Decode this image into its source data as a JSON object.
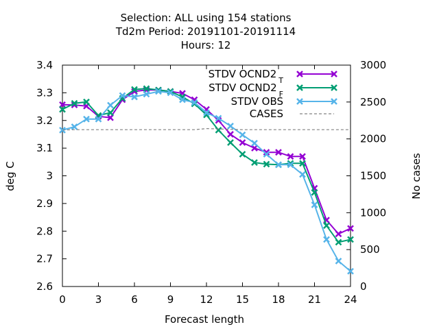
{
  "title_lines": [
    "Selection: ALL using   154 stations",
    "Td2m   Period: 20191101-20191114",
    "Hours:  12"
  ],
  "chart_data": {
    "type": "line",
    "xlabel": "Forecast length",
    "ylabel": "deg C",
    "y2label": "No cases",
    "xlim": [
      0,
      24
    ],
    "ylim": [
      2.6,
      3.4
    ],
    "y2lim": [
      0,
      3000
    ],
    "x_ticks": [
      "0",
      "3",
      "6",
      "9",
      "12",
      "15",
      "18",
      "21",
      "24"
    ],
    "y_ticks": [
      "2.6",
      "2.7",
      "2.8",
      "2.9",
      "3",
      "3.1",
      "3.2",
      "3.3",
      "3.4"
    ],
    "y2_ticks": [
      "0",
      "500",
      "1000",
      "1500",
      "2000",
      "2500",
      "3000"
    ],
    "legend_position": "top-right",
    "x": [
      0,
      1,
      2,
      3,
      4,
      5,
      6,
      7,
      8,
      9,
      10,
      11,
      12,
      13,
      14,
      15,
      16,
      17,
      18,
      19,
      20,
      21,
      22,
      23,
      24
    ],
    "series": [
      {
        "name": "STDV OCND2",
        "subscript": "T",
        "color": "#9400d3",
        "marker": "x",
        "axis": "y",
        "values": [
          3.257,
          3.256,
          3.252,
          3.215,
          3.21,
          3.275,
          3.305,
          3.31,
          3.31,
          3.305,
          3.298,
          3.275,
          3.24,
          3.2,
          3.15,
          3.12,
          3.1,
          3.085,
          3.085,
          3.07,
          3.07,
          2.955,
          2.84,
          2.79,
          2.81
        ]
      },
      {
        "name": "STDV OCND2",
        "subscript": "F",
        "color": "#009e73",
        "marker": "x",
        "axis": "y",
        "values": [
          3.24,
          3.262,
          3.267,
          3.218,
          3.228,
          3.28,
          3.312,
          3.315,
          3.31,
          3.305,
          3.285,
          3.26,
          3.22,
          3.165,
          3.12,
          3.078,
          3.048,
          3.042,
          3.04,
          3.045,
          3.045,
          2.94,
          2.82,
          2.76,
          2.77
        ]
      },
      {
        "name": "STDV OBS",
        "color": "#56b4e9",
        "marker": "x",
        "axis": "y",
        "values": [
          3.165,
          3.177,
          3.205,
          3.205,
          3.255,
          3.29,
          3.285,
          3.295,
          3.305,
          3.3,
          3.275,
          3.265,
          3.228,
          3.208,
          3.18,
          3.148,
          3.118,
          3.078,
          3.04,
          3.04,
          3.005,
          2.895,
          2.77,
          2.692,
          2.655
        ]
      },
      {
        "name": "CASES",
        "color": "#808080",
        "dashed": true,
        "axis": "y2",
        "values": [
          2120,
          2125,
          2125,
          2125,
          2125,
          2125,
          2125,
          2125,
          2125,
          2125,
          2125,
          2125,
          2140,
          2135,
          2130,
          2125,
          2125,
          2125,
          2125,
          2125,
          2125,
          2125,
          2125,
          2125,
          2125
        ]
      }
    ]
  }
}
